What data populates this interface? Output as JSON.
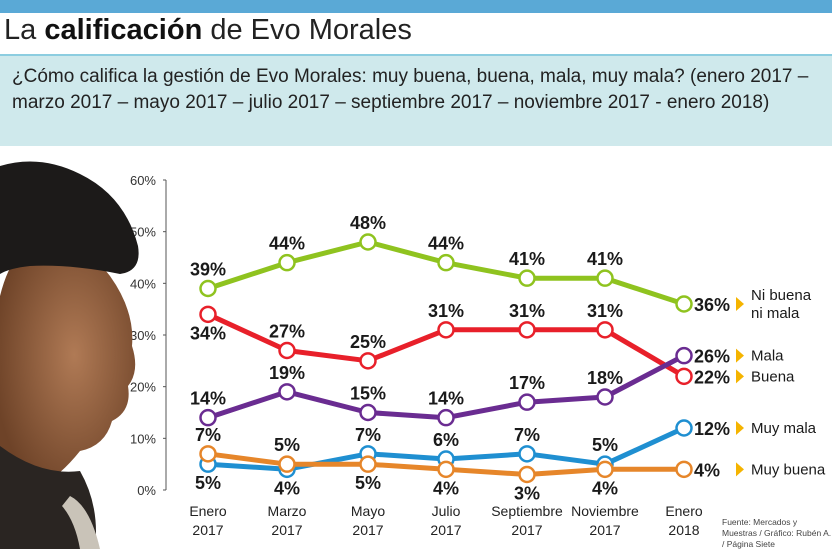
{
  "header": {
    "title_part1": "La ",
    "title_bold": "calificación",
    "title_part2": " de Evo Morales",
    "question": "¿Cómo califica la gestión de Evo Morales: muy buena, buena, mala, muy mala? (enero 2017 – marzo 2017 – mayo 2017 – julio 2017 – septiembre 2017 – noviembre 2017 - enero 2018)"
  },
  "source": "Fuente: Mercados y Muestras / Gráfico: Rubén A. / Página Siete",
  "chart_data": {
    "type": "line",
    "x": [
      "Enero 2017",
      "Marzo 2017",
      "Mayo 2017",
      "Julio 2017",
      "Septiembre 2017",
      "Noviembre 2017",
      "Enero 2018"
    ],
    "x_lines": [
      [
        "Enero",
        "2017"
      ],
      [
        "Marzo",
        "2017"
      ],
      [
        "Mayo",
        "2017"
      ],
      [
        "Julio",
        "2017"
      ],
      [
        "Septiembre",
        "2017"
      ],
      [
        "Noviembre",
        "2017"
      ],
      [
        "Enero",
        "2018"
      ]
    ],
    "ylim": [
      0,
      60
    ],
    "yticks": [
      "0%",
      "10%",
      "20%",
      "30%",
      "40%",
      "50%",
      "60%"
    ],
    "grid": false,
    "legend_placement": "right",
    "series": [
      {
        "name": "Ni buena ni mala",
        "name_lines": [
          "Ni buena",
          "ni mala"
        ],
        "color": "#8fc31f",
        "values": [
          39,
          44,
          48,
          44,
          41,
          41,
          36
        ],
        "labels": [
          "39%",
          "44%",
          "48%",
          "44%",
          "41%",
          "41%",
          "36%"
        ],
        "label_pos": [
          "above",
          "above",
          "above",
          "above",
          "above",
          "above",
          "right"
        ]
      },
      {
        "name": "Buena",
        "name_lines": [
          "Buena"
        ],
        "color": "#e8202a",
        "values": [
          34,
          27,
          25,
          31,
          31,
          31,
          22
        ],
        "labels": [
          "34%",
          "27%",
          "25%",
          "31%",
          "31%",
          "31%",
          "22%"
        ],
        "label_pos": [
          "below",
          "above",
          "above",
          "above",
          "above",
          "above",
          "right"
        ]
      },
      {
        "name": "Mala",
        "name_lines": [
          "Mala"
        ],
        "color": "#6a2c91",
        "values": [
          14,
          19,
          15,
          14,
          17,
          18,
          26
        ],
        "labels": [
          "14%",
          "19%",
          "15%",
          "14%",
          "17%",
          "18%",
          "26%"
        ],
        "label_pos": [
          "above",
          "above",
          "above",
          "above",
          "above",
          "above",
          "right"
        ]
      },
      {
        "name": "Muy mala",
        "name_lines": [
          "Muy mala"
        ],
        "color": "#1f8fd1",
        "values": [
          5,
          4,
          7,
          6,
          7,
          5,
          12
        ],
        "labels": [
          "5%",
          "4%",
          "7%",
          "6%",
          "7%",
          "5%",
          "12%"
        ],
        "label_pos": [
          "below",
          "below",
          "above",
          "above",
          "above",
          "above",
          "right"
        ]
      },
      {
        "name": "Muy buena",
        "name_lines": [
          "Muy buena"
        ],
        "color": "#e6862a",
        "values": [
          7,
          5,
          5,
          4,
          3,
          4,
          4
        ],
        "labels": [
          "7%",
          "5%",
          "5%",
          "4%",
          "3%",
          "4%",
          "4%"
        ],
        "label_pos": [
          "above",
          "above",
          "below",
          "below",
          "below",
          "below",
          "right"
        ]
      }
    ],
    "arrow_color": "#f5b400"
  }
}
